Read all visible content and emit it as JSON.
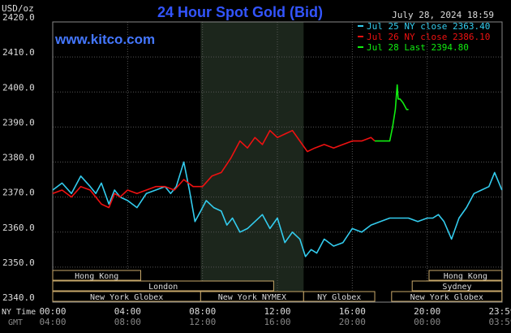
{
  "chart_data": {
    "type": "line",
    "title": "24 Hour Spot Gold (Bid)",
    "ylabel": "USD/oz",
    "watermark": "www.kitco.com",
    "timestamp": "July 28, 2024 18:59",
    "ylim": [
      2340,
      2420
    ],
    "yticks": [
      "2420.0",
      "2410.0",
      "2400.0",
      "2390.0",
      "2380.0",
      "2370.0",
      "2360.0",
      "2350.0",
      "2340.0"
    ],
    "x_ticks_ny": [
      "00:00",
      "04:00",
      "08:00",
      "12:00",
      "16:00",
      "20:00",
      "23:59"
    ],
    "x_ticks_gmt": [
      "04:00",
      "08:00",
      "12:00",
      "16:00",
      "20:00",
      "00:00",
      "03:59"
    ],
    "x_row_labels": {
      "ny": "NY Time",
      "gmt": "GMT"
    },
    "shaded_session_hours": [
      7.9,
      13.4
    ],
    "grid": true,
    "legend_position": "top-right",
    "colors": {
      "jul25": "#33ccee",
      "jul26": "#ee1111",
      "jul28": "#11ee11",
      "title": "#3355ff",
      "grid": "#555555",
      "session": "#c8a86a"
    },
    "series": [
      {
        "name": "Jul 25 NY close 2363.40",
        "color": "#33ccee",
        "x_hours": [
          0,
          0.5,
          1,
          1.5,
          2,
          2.3,
          2.6,
          3,
          3.3,
          3.6,
          4,
          4.5,
          5,
          5.5,
          6,
          6.3,
          6.6,
          7,
          7.3,
          7.6,
          7.9,
          8.2,
          8.6,
          9,
          9.3,
          9.6,
          10,
          10.4,
          10.8,
          11.2,
          11.6,
          12,
          12.4,
          12.8,
          13.2,
          13.5,
          13.8,
          14.1,
          14.5,
          15,
          15.5,
          16,
          16.5,
          17,
          17.5,
          18,
          18.5,
          19,
          19.5,
          20,
          20.3,
          20.6,
          20.9,
          21.3,
          21.7,
          22.1,
          22.5,
          22.9,
          23.3,
          23.6,
          23.99
        ],
        "values": [
          2372,
          2374,
          2371,
          2376,
          2373,
          2371,
          2374,
          2368,
          2372,
          2370,
          2369,
          2367,
          2371,
          2372,
          2373,
          2371,
          2373,
          2380,
          2372,
          2363,
          2366,
          2369,
          2367,
          2366,
          2362,
          2364,
          2360,
          2361,
          2363,
          2365,
          2361,
          2364,
          2357,
          2360,
          2358,
          2353,
          2355,
          2354,
          2358,
          2356,
          2357,
          2361,
          2360,
          2362,
          2363,
          2364,
          2364,
          2364,
          2363,
          2364,
          2364,
          2365,
          2363,
          2358,
          2364,
          2367,
          2371,
          2372,
          2373,
          2377,
          2372
        ]
      },
      {
        "name": "Jul 26 NY close 2386.10",
        "color": "#ee1111",
        "x_hours": [
          0,
          0.5,
          1,
          1.5,
          2,
          2.3,
          2.6,
          3,
          3.3,
          3.6,
          4,
          4.5,
          5,
          5.5,
          6,
          6.5,
          7,
          7.5,
          8,
          8.5,
          9,
          9.5,
          10,
          10.4,
          10.8,
          11.2,
          11.6,
          12,
          12.4,
          12.8,
          13.2,
          13.6,
          14,
          14.5,
          15,
          15.5,
          16,
          16.5,
          17,
          17.2
        ],
        "values": [
          2371,
          2372,
          2370,
          2373,
          2372,
          2370,
          2368,
          2367,
          2371,
          2370,
          2372,
          2371,
          2372,
          2373,
          2373,
          2372,
          2375,
          2373,
          2373,
          2376,
          2377,
          2381,
          2386,
          2384,
          2387,
          2385,
          2389,
          2387,
          2388,
          2389,
          2386,
          2383,
          2384,
          2385,
          2384,
          2385,
          2386,
          2386,
          2387,
          2386
        ]
      },
      {
        "name": "Jul 28 Last 2394.80",
        "color": "#11ee11",
        "x_hours": [
          17.2,
          17.6,
          18.0,
          18.15,
          18.3,
          18.4,
          18.45,
          18.55,
          18.7,
          18.9,
          19.0
        ],
        "values": [
          2386,
          2386,
          2386,
          2390,
          2395,
          2402,
          2398,
          2398,
          2397,
          2395,
          2395
        ]
      }
    ],
    "sessions": [
      {
        "label": "Hong Kong",
        "start_hour": 0,
        "end_hour": 4.7,
        "row": 0
      },
      {
        "label": "London",
        "start_hour": 0,
        "end_hour": 11.8,
        "row": 1
      },
      {
        "label": "New York Globex",
        "start_hour": 0,
        "end_hour": 7.9,
        "row": 2
      },
      {
        "label": "New York NYMEX",
        "start_hour": 7.9,
        "end_hour": 13.4,
        "row": 2
      },
      {
        "label": "NY Globex",
        "start_hour": 13.4,
        "end_hour": 17.2,
        "row": 2
      },
      {
        "label": "Hong Kong",
        "start_hour": 20.1,
        "end_hour": 23.99,
        "row": 0
      },
      {
        "label": "Sydney",
        "start_hour": 19.2,
        "end_hour": 23.99,
        "row": 1
      },
      {
        "label": "New York Globex",
        "start_hour": 18.1,
        "end_hour": 23.99,
        "row": 2
      }
    ]
  }
}
